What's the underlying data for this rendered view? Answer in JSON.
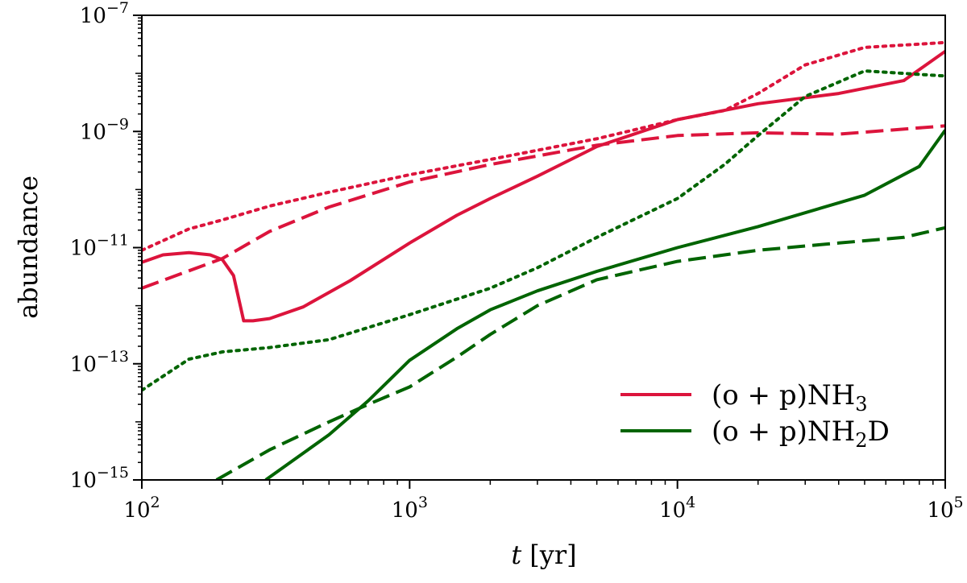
{
  "chart_data": {
    "type": "line",
    "xlabel_italic": "t",
    "xlabel_unit": "[yr]",
    "ylabel": "abundance",
    "xscale": "log",
    "yscale": "log",
    "xlim": [
      100,
      100000
    ],
    "ylim": [
      1e-15,
      1e-07
    ],
    "grid": false,
    "legend_placement": "lower-right",
    "x_ticks": [
      {
        "value": 100,
        "base": "10",
        "exp": "2"
      },
      {
        "value": 1000,
        "base": "10",
        "exp": "3"
      },
      {
        "value": 10000,
        "base": "10",
        "exp": "4"
      },
      {
        "value": 100000,
        "base": "10",
        "exp": "5"
      }
    ],
    "y_ticks": [
      {
        "value": 1e-15,
        "base": "10",
        "exp": "−15"
      },
      {
        "value": 1e-13,
        "base": "10",
        "exp": "−13"
      },
      {
        "value": 1e-11,
        "base": "10",
        "exp": "−11"
      },
      {
        "value": 1e-09,
        "base": "10",
        "exp": "−9"
      },
      {
        "value": 1e-07,
        "base": "10",
        "exp": "−7"
      }
    ],
    "legend": [
      {
        "pre": "(o + p)NH",
        "sub": "3",
        "post": "",
        "color": "#dc143c"
      },
      {
        "pre": "(o + p)NH",
        "sub": "2",
        "post": "D",
        "color": "#006400"
      }
    ],
    "series": [
      {
        "key": "nh3_solid",
        "color": "#dc143c",
        "dash": "solid",
        "x": [
          100,
          120,
          150,
          180,
          200,
          220,
          240,
          260,
          300,
          400,
          600,
          1000,
          1500,
          2000,
          3000,
          5000,
          10000,
          20000,
          40000,
          70000,
          100000
        ],
        "y": [
          5.6e-12,
          7.5e-12,
          8.2e-12,
          7.5e-12,
          6.2e-12,
          3.3e-12,
          5.5e-13,
          5.5e-13,
          6e-13,
          9.5e-13,
          2.7e-12,
          1.2e-11,
          3.6e-11,
          7e-11,
          1.7e-10,
          5.5e-10,
          1.6e-09,
          3e-09,
          4.5e-09,
          7.5e-09,
          2.4e-08
        ]
      },
      {
        "key": "nh3_dashed",
        "color": "#dc143c",
        "dash": "dashed",
        "x": [
          100,
          200,
          300,
          500,
          1000,
          2000,
          5000,
          10000,
          20000,
          40000,
          100000
        ],
        "y": [
          2e-12,
          6.5e-12,
          1.9e-11,
          5e-11,
          1.35e-10,
          2.7e-10,
          5.8e-10,
          8.5e-10,
          9.5e-10,
          9e-10,
          1.25e-09
        ]
      },
      {
        "key": "nh3_dotted",
        "color": "#dc143c",
        "dash": "dotted",
        "x": [
          100,
          150,
          200,
          300,
          500,
          1000,
          2000,
          5000,
          10000,
          15000,
          20000,
          30000,
          50000,
          100000
        ],
        "y": [
          9e-12,
          2.1e-11,
          3e-11,
          5.2e-11,
          9e-11,
          1.8e-10,
          3.3e-10,
          7.5e-10,
          1.6e-09,
          2.3e-09,
          4.5e-09,
          1.4e-08,
          2.8e-08,
          3.4e-08
        ]
      },
      {
        "key": "nh2d_solid",
        "color": "#006400",
        "dash": "solid",
        "x": [
          290,
          500,
          700,
          1000,
          1500,
          2000,
          3000,
          5000,
          10000,
          20000,
          50000,
          80000,
          100000
        ],
        "y": [
          1e-15,
          6e-15,
          2.3e-14,
          1.15e-13,
          4e-13,
          8.5e-13,
          1.8e-12,
          3.9e-12,
          1e-11,
          2.3e-11,
          8e-11,
          2.5e-10,
          1.05e-09
        ]
      },
      {
        "key": "nh2d_dashed",
        "color": "#006400",
        "dash": "dashed",
        "x": [
          190,
          300,
          500,
          700,
          1000,
          1500,
          2000,
          3000,
          5000,
          10000,
          20000,
          40000,
          70000,
          100000
        ],
        "y": [
          1e-15,
          3.3e-15,
          1e-14,
          2e-14,
          4e-14,
          1.3e-13,
          3.2e-13,
          1e-12,
          2.8e-12,
          5.8e-12,
          9e-12,
          1.2e-11,
          1.5e-11,
          2.2e-11
        ]
      },
      {
        "key": "nh2d_dotted",
        "color": "#006400",
        "dash": "dotted",
        "x": [
          100,
          150,
          200,
          300,
          500,
          1000,
          2000,
          3000,
          5000,
          10000,
          15000,
          20000,
          30000,
          50000,
          100000
        ],
        "y": [
          3.5e-14,
          1.2e-13,
          1.6e-13,
          1.9e-13,
          2.6e-13,
          7e-13,
          2e-12,
          4.5e-12,
          1.5e-11,
          7e-11,
          2.7e-10,
          8.5e-10,
          4e-09,
          1.1e-08,
          9e-09
        ]
      }
    ]
  }
}
